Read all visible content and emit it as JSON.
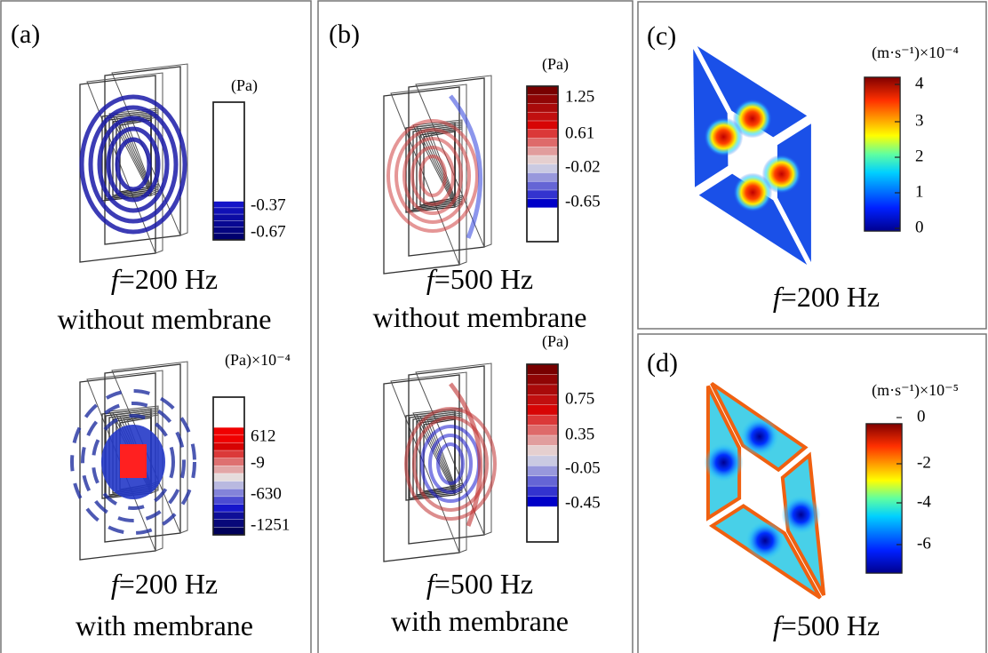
{
  "panels": [
    {
      "label": "(a)",
      "plots": [
        {
          "unit": "(Pa)",
          "ticks": [
            -0.37,
            -0.67
          ],
          "caption": {
            "variable": "f",
            "text": "=200 Hz",
            "condition": "without membrane"
          }
        },
        {
          "unit": "(Pa)×10⁻⁴",
          "ticks": [
            612,
            -9,
            -630,
            -1251
          ],
          "caption": {
            "variable": "f",
            "text": "=200 Hz",
            "condition": "with membrane"
          }
        }
      ]
    },
    {
      "label": "(b)",
      "plots": [
        {
          "unit": "(Pa)",
          "ticks": [
            1.25,
            0.61,
            -0.02,
            -0.65
          ],
          "caption": {
            "variable": "f",
            "text": "=500 Hz",
            "condition": "without membrane"
          }
        },
        {
          "unit": "(Pa)",
          "ticks": [
            0.75,
            0.35,
            -0.05,
            -0.45
          ],
          "caption": {
            "variable": "f",
            "text": "=500 Hz",
            "condition": "with membrane"
          }
        }
      ]
    },
    {
      "label": "(c)",
      "plots": [
        {
          "unit": "(m·s⁻¹)×10⁻⁴",
          "ticks": [
            4,
            3,
            2,
            1,
            0
          ],
          "caption": {
            "variable": "f",
            "text": "=200 Hz"
          }
        }
      ]
    },
    {
      "label": "(d)",
      "plots": [
        {
          "unit": "(m·s⁻¹)×10⁻⁵",
          "ticks": [
            0,
            -2,
            -4,
            -6
          ],
          "caption": {
            "variable": "f",
            "text": "=500 Hz"
          }
        }
      ]
    }
  ]
}
